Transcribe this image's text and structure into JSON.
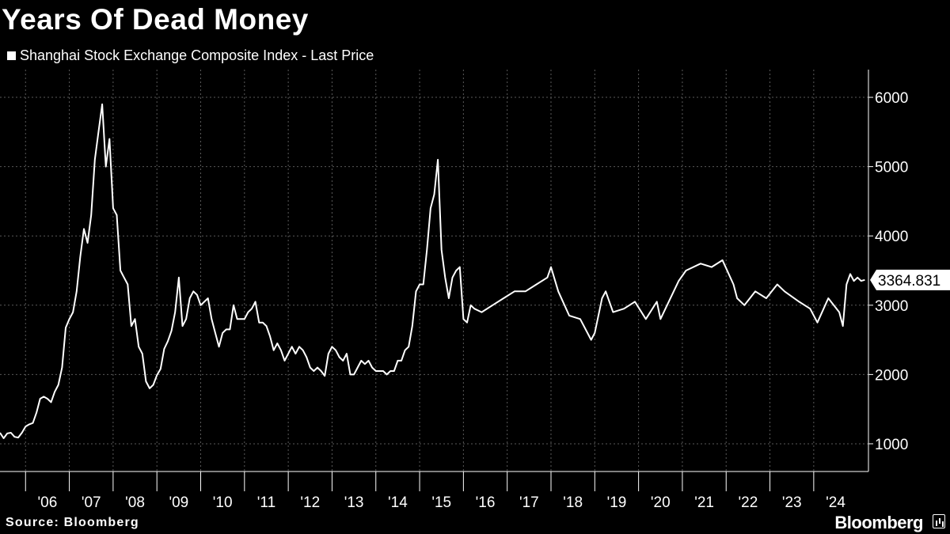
{
  "page": {
    "title": "Years Of Dead Money",
    "source": "Source: Bloomberg",
    "brand": "Bloomberg"
  },
  "colors": {
    "background": "#000000",
    "line": "#ffffff",
    "grid": "#5a5a5a",
    "text": "#ffffff"
  },
  "chart_data": {
    "type": "line",
    "title": "Years Of Dead Money",
    "series": [
      {
        "name": "Shanghai Stock Exchange Composite Index - Last Price",
        "last_value_label": "3364.831",
        "x": [
          "2005-06",
          "2005-07",
          "2005-08",
          "2005-09",
          "2005-10",
          "2005-11",
          "2005-12",
          "2006-01",
          "2006-02",
          "2006-03",
          "2006-04",
          "2006-05",
          "2006-06",
          "2006-07",
          "2006-08",
          "2006-09",
          "2006-10",
          "2006-11",
          "2006-12",
          "2007-01",
          "2007-02",
          "2007-03",
          "2007-04",
          "2007-05",
          "2007-06",
          "2007-07",
          "2007-08",
          "2007-09",
          "2007-10",
          "2007-11",
          "2007-12",
          "2008-01",
          "2008-02",
          "2008-03",
          "2008-04",
          "2008-05",
          "2008-06",
          "2008-07",
          "2008-08",
          "2008-09",
          "2008-10",
          "2008-11",
          "2008-12",
          "2009-01",
          "2009-02",
          "2009-03",
          "2009-04",
          "2009-05",
          "2009-06",
          "2009-07",
          "2009-08",
          "2009-09",
          "2009-10",
          "2009-11",
          "2009-12",
          "2010-01",
          "2010-02",
          "2010-03",
          "2010-04",
          "2010-05",
          "2010-06",
          "2010-07",
          "2010-08",
          "2010-09",
          "2010-10",
          "2010-11",
          "2010-12",
          "2011-01",
          "2011-02",
          "2011-03",
          "2011-04",
          "2011-05",
          "2011-06",
          "2011-07",
          "2011-08",
          "2011-09",
          "2011-10",
          "2011-11",
          "2011-12",
          "2012-01",
          "2012-02",
          "2012-03",
          "2012-04",
          "2012-05",
          "2012-06",
          "2012-07",
          "2012-08",
          "2012-09",
          "2012-10",
          "2012-11",
          "2012-12",
          "2013-01",
          "2013-02",
          "2013-03",
          "2013-04",
          "2013-05",
          "2013-06",
          "2013-07",
          "2013-08",
          "2013-09",
          "2013-10",
          "2013-11",
          "2013-12",
          "2014-01",
          "2014-02",
          "2014-03",
          "2014-04",
          "2014-05",
          "2014-06",
          "2014-07",
          "2014-08",
          "2014-09",
          "2014-10",
          "2014-11",
          "2014-12",
          "2015-01",
          "2015-02",
          "2015-03",
          "2015-04",
          "2015-05",
          "2015-06",
          "2015-07",
          "2015-08",
          "2015-09",
          "2015-10",
          "2015-11",
          "2015-12",
          "2016-01",
          "2016-02",
          "2016-03",
          "2016-04",
          "2016-06",
          "2016-09",
          "2016-12",
          "2017-03",
          "2017-06",
          "2017-09",
          "2017-12",
          "2018-01",
          "2018-03",
          "2018-06",
          "2018-09",
          "2018-12",
          "2019-01",
          "2019-03",
          "2019-04",
          "2019-06",
          "2019-09",
          "2019-12",
          "2020-03",
          "2020-06",
          "2020-07",
          "2020-12",
          "2021-02",
          "2021-06",
          "2021-09",
          "2021-12",
          "2022-03",
          "2022-04",
          "2022-06",
          "2022-09",
          "2022-12",
          "2023-03",
          "2023-05",
          "2023-09",
          "2023-12",
          "2024-02",
          "2024-05",
          "2024-08",
          "2024-09",
          "2024-10",
          "2024-11",
          "2024-12",
          "2025-01",
          "2025-02",
          "2025-03"
        ],
        "values": [
          1160,
          1080,
          1150,
          1160,
          1100,
          1090,
          1160,
          1250,
          1280,
          1300,
          1450,
          1650,
          1680,
          1650,
          1600,
          1750,
          1850,
          2100,
          2675,
          2800,
          2900,
          3200,
          3700,
          4100,
          3900,
          4300,
          5100,
          5500,
          5900,
          5000,
          5400,
          4400,
          4300,
          3500,
          3400,
          3300,
          2700,
          2800,
          2400,
          2300,
          1900,
          1800,
          1850,
          1990,
          2080,
          2370,
          2480,
          2630,
          2900,
          3400,
          2700,
          2800,
          3100,
          3200,
          3150,
          3000,
          3050,
          3100,
          2800,
          2600,
          2400,
          2600,
          2650,
          2650,
          3000,
          2800,
          2800,
          2800,
          2900,
          2950,
          3050,
          2750,
          2750,
          2700,
          2550,
          2350,
          2450,
          2350,
          2200,
          2300,
          2400,
          2300,
          2400,
          2350,
          2250,
          2100,
          2050,
          2100,
          2050,
          1980,
          2300,
          2400,
          2350,
          2250,
          2200,
          2300,
          2000,
          2000,
          2100,
          2200,
          2150,
          2200,
          2100,
          2050,
          2050,
          2050,
          2000,
          2050,
          2050,
          2200,
          2200,
          2350,
          2400,
          2700,
          3200,
          3300,
          3300,
          3800,
          4400,
          4600,
          5100,
          3800,
          3400,
          3100,
          3400,
          3500,
          3550,
          2800,
          2750,
          3000,
          2950,
          2900,
          3000,
          3100,
          3200,
          3200,
          3300,
          3400,
          3550,
          3200,
          2850,
          2800,
          2500,
          2600,
          3100,
          3200,
          2900,
          2950,
          3050,
          2800,
          3050,
          2800,
          3350,
          3500,
          3600,
          3550,
          3650,
          3300,
          3100,
          3000,
          3200,
          3100,
          3300,
          3200,
          3050,
          2950,
          2750,
          3100,
          2900,
          2700,
          3300,
          3450,
          3350,
          3400,
          3350,
          3364.831
        ]
      }
    ],
    "xlabel": "",
    "ylabel": "",
    "x_tick_labels": [
      "'06",
      "'07",
      "'08",
      "'09",
      "'10",
      "'11",
      "'12",
      "'13",
      "'14",
      "'15",
      "'16",
      "'17",
      "'18",
      "'19",
      "'20",
      "'21",
      "'22",
      "'23",
      "'24"
    ],
    "y_ticks": [
      1000,
      2000,
      3000,
      4000,
      5000,
      6000
    ],
    "ylim": [
      600,
      6400
    ],
    "xlim": [
      "2005-06",
      "2025-04"
    ],
    "grid": true,
    "y_axis_side": "right",
    "legend": "top-left"
  }
}
